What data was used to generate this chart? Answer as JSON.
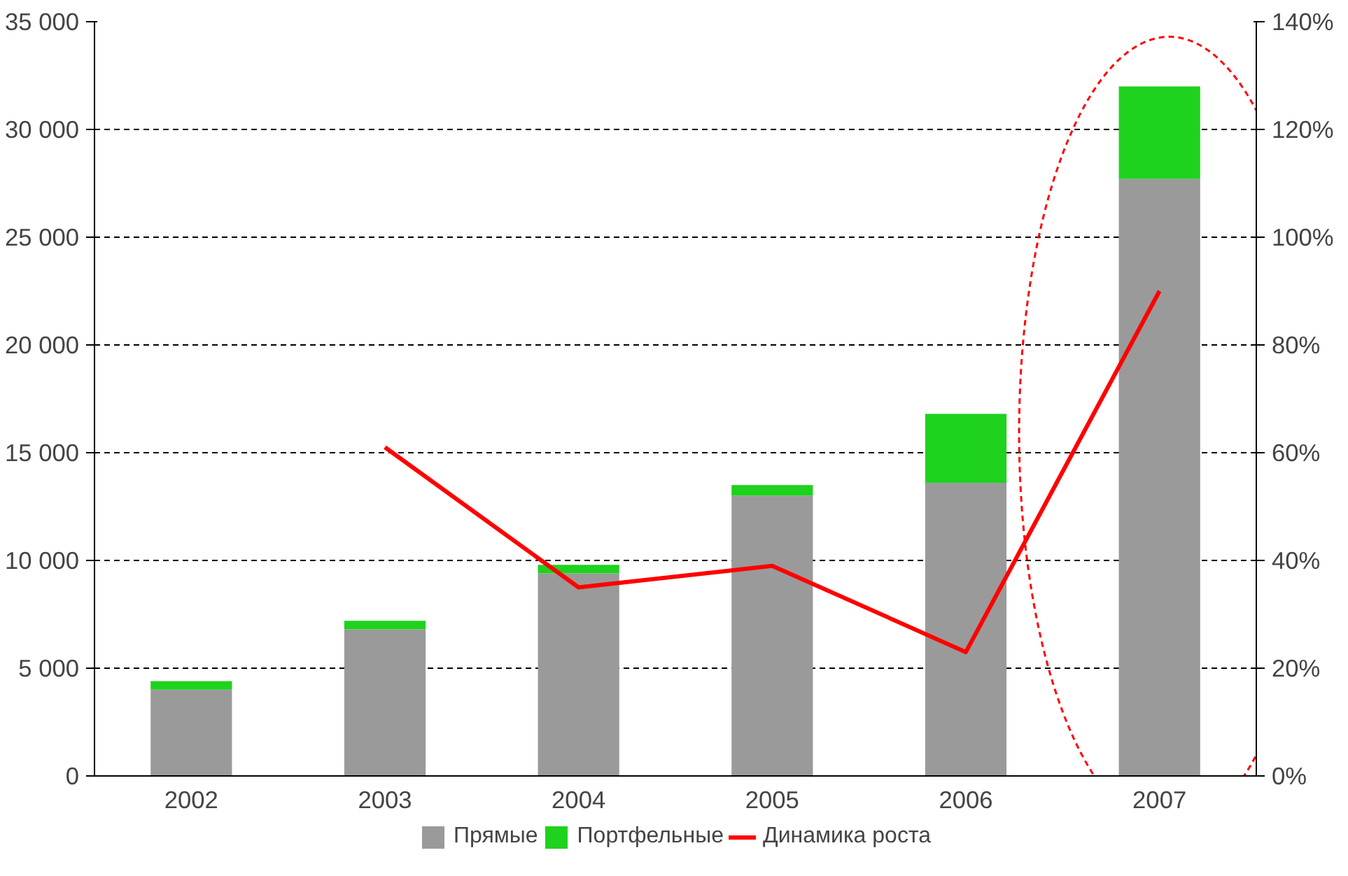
{
  "chart_data": {
    "type": "bar",
    "stacked": true,
    "categories": [
      "2002",
      "2003",
      "2004",
      "2005",
      "2006",
      "2007"
    ],
    "series": [
      {
        "name": "Прямые",
        "color": "#9a9a9a",
        "values": [
          4000,
          6800,
          9400,
          13000,
          13600,
          27700
        ]
      },
      {
        "name": "Портфельные",
        "color": "#1ed21e",
        "values": [
          400,
          400,
          400,
          500,
          3200,
          4300
        ]
      },
      {
        "name": "Динамика роста",
        "type": "line",
        "axis": "y2",
        "color": "#ff0000",
        "values": [
          null,
          61,
          35,
          39,
          23,
          90
        ]
      }
    ],
    "ylim": [
      0,
      35000
    ],
    "yticks": [
      {
        "value": 0,
        "label": "0"
      },
      {
        "value": 5000,
        "label": "5 000"
      },
      {
        "value": 10000,
        "label": "10 000"
      },
      {
        "value": 15000,
        "label": "15 000"
      },
      {
        "value": 20000,
        "label": "20 000"
      },
      {
        "value": 25000,
        "label": "25 000"
      },
      {
        "value": 30000,
        "label": "30 000"
      },
      {
        "value": 35000,
        "label": "35 000"
      }
    ],
    "y2lim": [
      0,
      140
    ],
    "y2ticks": [
      {
        "value": 0,
        "label": "0%"
      },
      {
        "value": 20,
        "label": "20%"
      },
      {
        "value": 40,
        "label": "40%"
      },
      {
        "value": 60,
        "label": "60%"
      },
      {
        "value": 80,
        "label": "80%"
      },
      {
        "value": 100,
        "label": "100%"
      },
      {
        "value": 120,
        "label": "120%"
      },
      {
        "value": 140,
        "label": "140%"
      }
    ],
    "grid": "y",
    "legend": "bottom"
  }
}
